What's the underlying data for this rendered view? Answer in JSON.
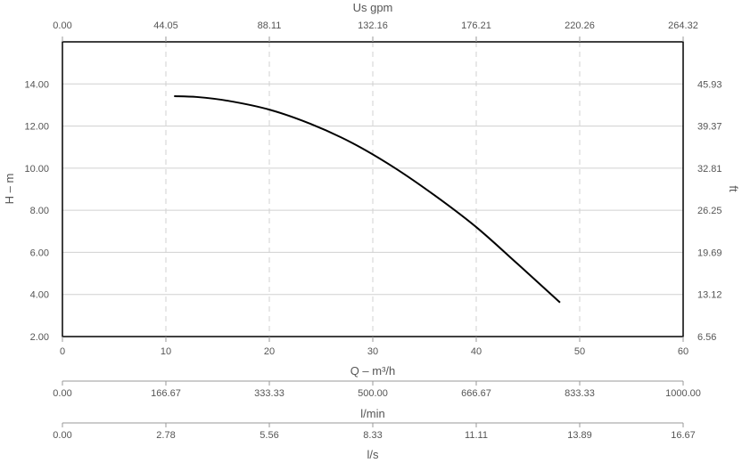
{
  "chart_data": {
    "type": "line",
    "xlabel": "Q – m³/h",
    "ylabel": "H – m",
    "xlim": [
      0,
      60
    ],
    "ylim": [
      2,
      16
    ],
    "x_ticks": [
      "0",
      "10",
      "20",
      "30",
      "40",
      "50",
      "60"
    ],
    "y_ticks": [
      "2.00",
      "4.00",
      "6.00",
      "8.00",
      "10.00",
      "12.00",
      "14.00"
    ],
    "x_grid": "dashed",
    "y_grid": "solid",
    "top_axis": {
      "label": "Us gpm",
      "ticks": [
        "0.00",
        "44.05",
        "88.11",
        "132.16",
        "176.21",
        "220.26",
        "264.32"
      ]
    },
    "right_axis": {
      "label": "ft",
      "ticks": [
        "6.56",
        "13.12",
        "19.69",
        "26.25",
        "32.81",
        "39.37",
        "45.93"
      ]
    },
    "extra_axes": [
      {
        "label": "l/min",
        "ticks": [
          "0.00",
          "166.67",
          "333.33",
          "500.00",
          "666.67",
          "833.33",
          "1000.00"
        ]
      },
      {
        "label": "l/s",
        "ticks": [
          "0.00",
          "2.78",
          "5.56",
          "8.33",
          "11.11",
          "13.89",
          "16.67"
        ]
      }
    ],
    "series": [
      {
        "color": "#000000",
        "x": [
          10.8,
          13,
          16,
          20,
          24,
          28,
          32,
          36,
          40,
          44,
          48.1
        ],
        "y": [
          13.42,
          13.38,
          13.2,
          12.78,
          12.1,
          11.2,
          10.05,
          8.7,
          7.2,
          5.45,
          3.62
        ]
      }
    ]
  }
}
